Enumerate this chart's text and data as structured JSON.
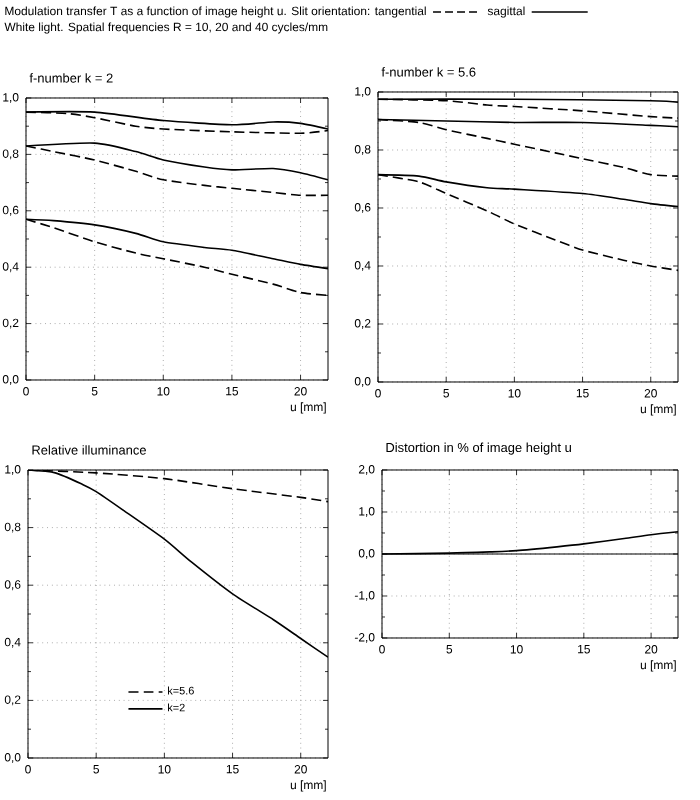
{
  "chart_data": [
    {
      "type": "line",
      "title": "f-number k = 2",
      "xlabel": "u [mm]",
      "annotations": [
        "Modulation transfer T as a function of image height u. Slit orientation: tangential",
        "sagittal",
        "White light. Spatial frequencies R = 10, 20 and 40 cycles/mm"
      ],
      "xlim": [
        0,
        22
      ],
      "xticks": [
        0,
        5,
        10,
        15,
        20
      ],
      "ylim": [
        0,
        1
      ],
      "yticks": [
        {
          "value": 0,
          "label": "0,0"
        },
        {
          "value": 0.2,
          "label": "0,2"
        },
        {
          "value": 0.4,
          "label": "0,4"
        },
        {
          "value": 0.6,
          "label": "0,6"
        },
        {
          "value": 0.8,
          "label": "0,8"
        },
        {
          "value": 1,
          "label": "1,0"
        }
      ],
      "grid": true,
      "series": [
        {
          "color": "#000000",
          "line_style": "solid",
          "x": [
            0,
            5,
            10,
            15,
            18,
            20,
            22
          ],
          "values": [
            0.95,
            0.95,
            0.92,
            0.905,
            0.915,
            0.91,
            0.89
          ]
        },
        {
          "color": "#000000",
          "line_style": "dashed",
          "x": [
            0,
            3,
            5,
            8,
            10,
            15,
            20,
            22
          ],
          "values": [
            0.95,
            0.945,
            0.93,
            0.9,
            0.89,
            0.88,
            0.875,
            0.885
          ]
        },
        {
          "color": "#000000",
          "line_style": "solid",
          "x": [
            0,
            5,
            8,
            10,
            13,
            15,
            18,
            20,
            22
          ],
          "values": [
            0.83,
            0.84,
            0.81,
            0.78,
            0.755,
            0.745,
            0.75,
            0.735,
            0.71
          ]
        },
        {
          "color": "#000000",
          "line_style": "dashed",
          "x": [
            0,
            2,
            5,
            8,
            10,
            13,
            15,
            18,
            20,
            22
          ],
          "values": [
            0.83,
            0.81,
            0.78,
            0.74,
            0.71,
            0.69,
            0.68,
            0.665,
            0.655,
            0.655
          ]
        },
        {
          "color": "#000000",
          "line_style": "solid",
          "x": [
            0,
            2,
            5,
            8,
            10,
            13,
            15,
            18,
            20,
            22
          ],
          "values": [
            0.57,
            0.565,
            0.55,
            0.52,
            0.49,
            0.47,
            0.46,
            0.43,
            0.41,
            0.395
          ]
        },
        {
          "color": "#000000",
          "line_style": "dashed",
          "x": [
            0,
            2,
            5,
            8,
            10,
            13,
            15,
            18,
            20,
            22
          ],
          "values": [
            0.57,
            0.54,
            0.49,
            0.45,
            0.43,
            0.4,
            0.375,
            0.34,
            0.31,
            0.3
          ]
        }
      ]
    },
    {
      "type": "line",
      "title": "f-number k = 5.6",
      "xlabel": "u [mm]",
      "xlim": [
        0,
        22
      ],
      "xticks": [
        0,
        5,
        10,
        15,
        20
      ],
      "ylim": [
        0,
        1
      ],
      "yticks": [
        {
          "value": 0,
          "label": "0,0"
        },
        {
          "value": 0.2,
          "label": "0,2"
        },
        {
          "value": 0.4,
          "label": "0,4"
        },
        {
          "value": 0.6,
          "label": "0,6"
        },
        {
          "value": 0.8,
          "label": "0,8"
        },
        {
          "value": 1,
          "label": "1,0"
        }
      ],
      "grid": true,
      "series": [
        {
          "color": "#000000",
          "line_style": "solid",
          "x": [
            0,
            10,
            20,
            22
          ],
          "values": [
            0.975,
            0.975,
            0.97,
            0.965
          ]
        },
        {
          "color": "#000000",
          "line_style": "dashed",
          "x": [
            0,
            5,
            8,
            10,
            15,
            20,
            22
          ],
          "values": [
            0.975,
            0.97,
            0.955,
            0.95,
            0.935,
            0.915,
            0.91
          ]
        },
        {
          "color": "#000000",
          "line_style": "solid",
          "x": [
            0,
            5,
            10,
            15,
            20,
            22
          ],
          "values": [
            0.905,
            0.9,
            0.895,
            0.895,
            0.885,
            0.88
          ]
        },
        {
          "color": "#000000",
          "line_style": "dashed",
          "x": [
            0,
            3,
            5,
            8,
            10,
            13,
            15,
            18,
            20,
            22
          ],
          "values": [
            0.905,
            0.895,
            0.87,
            0.84,
            0.82,
            0.79,
            0.77,
            0.74,
            0.715,
            0.71
          ]
        },
        {
          "color": "#000000",
          "line_style": "solid",
          "x": [
            0,
            3,
            5,
            8,
            10,
            15,
            18,
            20,
            22
          ],
          "values": [
            0.715,
            0.71,
            0.69,
            0.67,
            0.665,
            0.65,
            0.63,
            0.615,
            0.605
          ]
        },
        {
          "color": "#000000",
          "line_style": "dashed",
          "x": [
            0,
            3,
            5,
            8,
            10,
            13,
            15,
            18,
            20,
            22
          ],
          "values": [
            0.715,
            0.69,
            0.65,
            0.59,
            0.545,
            0.49,
            0.455,
            0.42,
            0.4,
            0.385
          ]
        }
      ]
    },
    {
      "type": "line",
      "title": "Relative illuminance",
      "xlabel": "u [mm]",
      "xlim": [
        0,
        22
      ],
      "xticks": [
        0,
        5,
        10,
        15,
        20
      ],
      "ylim": [
        0,
        1
      ],
      "yticks": [
        {
          "value": 0,
          "label": "0,0"
        },
        {
          "value": 0.2,
          "label": "0,2"
        },
        {
          "value": 0.4,
          "label": "0,4"
        },
        {
          "value": 0.6,
          "label": "0,6"
        },
        {
          "value": 0.8,
          "label": "0,8"
        },
        {
          "value": 1,
          "label": "1,0"
        }
      ],
      "grid": true,
      "legend": "bottom",
      "series": [
        {
          "name": "k=5.6",
          "color": "#000000",
          "line_style": "dashed",
          "x": [
            0,
            5,
            10,
            15,
            20,
            22
          ],
          "values": [
            1.0,
            0.99,
            0.97,
            0.935,
            0.905,
            0.89
          ]
        },
        {
          "name": "k=2",
          "color": "#000000",
          "line_style": "solid",
          "x": [
            0,
            2,
            4,
            5,
            7,
            10,
            12,
            15,
            18,
            20,
            22
          ],
          "values": [
            1.0,
            0.99,
            0.95,
            0.925,
            0.86,
            0.76,
            0.68,
            0.57,
            0.48,
            0.415,
            0.35
          ]
        }
      ]
    },
    {
      "type": "line",
      "title": "Distortion in % of image height u",
      "xlabel": "u [mm]",
      "xlim": [
        0,
        22
      ],
      "xticks": [
        0,
        5,
        10,
        15,
        20
      ],
      "ylim": [
        -2,
        2
      ],
      "yticks": [
        {
          "value": -2,
          "label": "-2,0"
        },
        {
          "value": -1,
          "label": "-1,0"
        },
        {
          "value": 0,
          "label": "0,0"
        },
        {
          "value": 1,
          "label": "1,0"
        },
        {
          "value": 2,
          "label": "2,0"
        }
      ],
      "grid": true,
      "ref_lines": [
        {
          "axis": "y",
          "value": 0,
          "color": "#000000"
        }
      ],
      "series": [
        {
          "color": "#000000",
          "line_style": "solid",
          "x": [
            0,
            5,
            8,
            10,
            13,
            15,
            18,
            20,
            22
          ],
          "values": [
            0,
            0.02,
            0.05,
            0.08,
            0.17,
            0.24,
            0.37,
            0.46,
            0.53
          ]
        }
      ]
    }
  ]
}
